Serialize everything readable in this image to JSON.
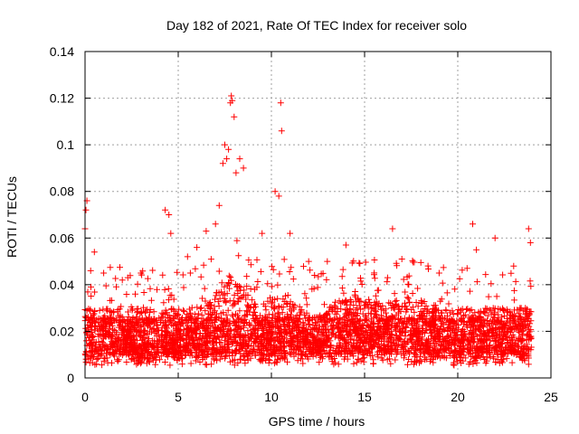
{
  "chart_data": {
    "type": "scatter",
    "title": "Day 182 of 2021, Rate Of TEC Index for receiver solo",
    "xlabel": "GPS time / hours",
    "ylabel": "ROTI / TECUs",
    "xlim": [
      0,
      25
    ],
    "ylim": [
      0,
      0.14
    ],
    "xticks": [
      "0",
      "5",
      "10",
      "15",
      "20",
      "25"
    ],
    "xtick_values": [
      0,
      5,
      10,
      15,
      20,
      25
    ],
    "yticks": [
      "0",
      "0.02",
      "0.04",
      "0.06",
      "0.08",
      "0.1",
      "0.12",
      "0.14"
    ],
    "ytick_values": [
      0,
      0.02,
      0.04,
      0.06,
      0.08,
      0.1,
      0.12,
      0.14
    ],
    "grid": true,
    "marker": "+",
    "color": "#ff0000",
    "series": [
      {
        "name": "ROTI",
        "description_points": [
          [
            0.0,
            0.064
          ],
          [
            0.05,
            0.072
          ],
          [
            0.1,
            0.076
          ],
          [
            0.3,
            0.046
          ],
          [
            0.5,
            0.054
          ],
          [
            1.0,
            0.045
          ],
          [
            2.0,
            0.042
          ],
          [
            3.0,
            0.045
          ],
          [
            4.3,
            0.072
          ],
          [
            4.5,
            0.07
          ],
          [
            4.6,
            0.062
          ],
          [
            5.5,
            0.052
          ],
          [
            6.0,
            0.056
          ],
          [
            6.5,
            0.063
          ],
          [
            7.0,
            0.066
          ],
          [
            7.2,
            0.074
          ],
          [
            7.4,
            0.092
          ],
          [
            7.5,
            0.1
          ],
          [
            7.6,
            0.094
          ],
          [
            7.7,
            0.098
          ],
          [
            7.8,
            0.118
          ],
          [
            7.85,
            0.121
          ],
          [
            7.9,
            0.119
          ],
          [
            8.0,
            0.112
          ],
          [
            8.1,
            0.088
          ],
          [
            8.3,
            0.094
          ],
          [
            8.5,
            0.09
          ],
          [
            9.5,
            0.062
          ],
          [
            10.2,
            0.08
          ],
          [
            10.4,
            0.078
          ],
          [
            10.5,
            0.118
          ],
          [
            10.55,
            0.106
          ],
          [
            11.0,
            0.062
          ],
          [
            12.0,
            0.05
          ],
          [
            13.0,
            0.05
          ],
          [
            14.0,
            0.057
          ],
          [
            16.5,
            0.064
          ],
          [
            17.0,
            0.051
          ],
          [
            19.0,
            0.045
          ],
          [
            20.5,
            0.047
          ],
          [
            20.8,
            0.066
          ],
          [
            21.0,
            0.055
          ],
          [
            22.0,
            0.06
          ],
          [
            23.0,
            0.048
          ],
          [
            23.8,
            0.064
          ],
          [
            23.9,
            0.058
          ]
        ]
      }
    ]
  }
}
